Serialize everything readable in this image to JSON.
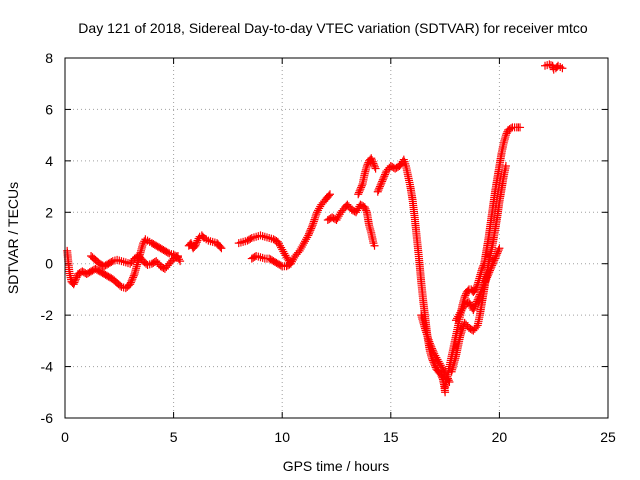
{
  "chart_data": {
    "type": "scatter",
    "title": "Day 121 of 2018, Sidereal Day-to-day VTEC variation (SDTVAR) for receiver mtco",
    "xlabel": "GPS time / hours",
    "ylabel": "SDTVAR / TECUs",
    "xlim": [
      0,
      25
    ],
    "ylim": [
      -6,
      8
    ],
    "xticks": [
      "0",
      "5",
      "10",
      "15",
      "20",
      "25"
    ],
    "yticks": [
      "-6",
      "-4",
      "-2",
      "0",
      "2",
      "4",
      "6",
      "8"
    ],
    "grid": true,
    "marker": "plus",
    "color": "#ff0000",
    "series": [
      {
        "points": [
          [
            0.1,
            0.5
          ],
          [
            0.15,
            0.1
          ],
          [
            0.2,
            -0.3
          ],
          [
            0.3,
            -0.7
          ],
          [
            0.4,
            -0.8
          ],
          [
            0.5,
            -0.6
          ],
          [
            0.6,
            -0.4
          ],
          [
            0.8,
            -0.3
          ],
          [
            1.0,
            -0.4
          ],
          [
            1.2,
            -0.3
          ],
          [
            1.4,
            -0.2
          ],
          [
            1.6,
            -0.3
          ],
          [
            1.8,
            -0.4
          ],
          [
            2.0,
            -0.5
          ],
          [
            2.2,
            -0.6
          ],
          [
            2.4,
            -0.75
          ],
          [
            2.6,
            -0.9
          ],
          [
            2.8,
            -0.95
          ],
          [
            3.0,
            -0.8
          ],
          [
            3.1,
            -0.6
          ],
          [
            3.2,
            -0.4
          ],
          [
            3.3,
            -0.1
          ],
          [
            3.4,
            0.2
          ],
          [
            3.5,
            0.5
          ],
          [
            3.6,
            0.8
          ],
          [
            3.7,
            0.95
          ],
          [
            3.8,
            0.9
          ],
          [
            3.9,
            0.85
          ],
          [
            4.0,
            0.8
          ],
          [
            4.2,
            0.7
          ],
          [
            4.4,
            0.6
          ],
          [
            4.6,
            0.5
          ],
          [
            4.8,
            0.4
          ],
          [
            5.0,
            0.35
          ],
          [
            5.2,
            0.25
          ],
          [
            5.3,
            0.1
          ]
        ]
      },
      {
        "points": [
          [
            1.2,
            0.3
          ],
          [
            1.4,
            0.15
          ],
          [
            1.6,
            0.0
          ],
          [
            1.8,
            -0.1
          ],
          [
            2.0,
            0.0
          ],
          [
            2.2,
            0.1
          ],
          [
            2.4,
            0.15
          ],
          [
            2.6,
            0.1
          ],
          [
            2.8,
            0.05
          ],
          [
            3.0,
            0.0
          ],
          [
            3.2,
            0.2
          ],
          [
            3.4,
            0.3
          ],
          [
            3.6,
            0.1
          ],
          [
            3.8,
            -0.05
          ],
          [
            4.0,
            0.0
          ],
          [
            4.2,
            0.1
          ],
          [
            4.4,
            -0.1
          ],
          [
            4.6,
            -0.2
          ],
          [
            4.8,
            0.0
          ],
          [
            5.0,
            0.2
          ],
          [
            5.2,
            0.3
          ]
        ]
      },
      {
        "points": [
          [
            5.7,
            0.7
          ],
          [
            5.8,
            0.8
          ],
          [
            5.9,
            0.6
          ],
          [
            6.0,
            0.7
          ],
          [
            6.1,
            0.9
          ],
          [
            6.2,
            1.05
          ],
          [
            6.3,
            1.1
          ],
          [
            6.4,
            1.0
          ],
          [
            6.5,
            0.95
          ],
          [
            6.6,
            0.9
          ],
          [
            6.8,
            0.85
          ],
          [
            7.0,
            0.8
          ],
          [
            7.1,
            0.7
          ],
          [
            7.2,
            0.6
          ]
        ]
      },
      {
        "points": [
          [
            8.0,
            0.8
          ],
          [
            8.2,
            0.85
          ],
          [
            8.4,
            0.9
          ],
          [
            8.6,
            1.0
          ],
          [
            8.8,
            1.05
          ],
          [
            9.0,
            1.1
          ],
          [
            9.2,
            1.05
          ],
          [
            9.4,
            1.0
          ],
          [
            9.6,
            0.95
          ],
          [
            9.8,
            0.85
          ],
          [
            10.0,
            0.55
          ],
          [
            10.2,
            0.25
          ],
          [
            10.35,
            0.05
          ]
        ]
      },
      {
        "points": [
          [
            8.6,
            0.2
          ],
          [
            8.8,
            0.3
          ],
          [
            9.0,
            0.25
          ],
          [
            9.2,
            0.2
          ],
          [
            9.4,
            0.2
          ],
          [
            9.6,
            0.1
          ],
          [
            9.8,
            0.0
          ],
          [
            10.0,
            -0.1
          ],
          [
            10.2,
            -0.1
          ],
          [
            10.4,
            0.0
          ],
          [
            10.6,
            0.3
          ],
          [
            10.8,
            0.5
          ],
          [
            11.0,
            0.8
          ],
          [
            11.2,
            1.1
          ],
          [
            11.4,
            1.5
          ],
          [
            11.6,
            2.0
          ],
          [
            11.8,
            2.3
          ],
          [
            12.0,
            2.5
          ],
          [
            12.1,
            2.6
          ],
          [
            12.2,
            2.7
          ]
        ]
      },
      {
        "points": [
          [
            12.1,
            1.7
          ],
          [
            12.3,
            1.8
          ],
          [
            12.5,
            1.7
          ],
          [
            12.7,
            2.0
          ],
          [
            12.9,
            2.2
          ],
          [
            13.0,
            2.3
          ],
          [
            13.2,
            2.1
          ],
          [
            13.4,
            2.0
          ],
          [
            13.6,
            2.3
          ],
          [
            13.8,
            2.2
          ],
          [
            13.9,
            2.0
          ],
          [
            14.0,
            1.5
          ],
          [
            14.1,
            1.2
          ],
          [
            14.2,
            0.8
          ],
          [
            14.25,
            0.7
          ]
        ]
      },
      {
        "points": [
          [
            13.5,
            2.7
          ],
          [
            13.6,
            2.9
          ],
          [
            13.7,
            3.1
          ],
          [
            13.8,
            3.5
          ],
          [
            13.9,
            3.8
          ],
          [
            14.0,
            4.0
          ],
          [
            14.1,
            4.1
          ],
          [
            14.2,
            3.9
          ],
          [
            14.3,
            3.7
          ]
        ]
      },
      {
        "points": [
          [
            14.4,
            2.8
          ],
          [
            14.6,
            3.2
          ],
          [
            14.8,
            3.6
          ],
          [
            15.0,
            3.8
          ],
          [
            15.2,
            3.7
          ],
          [
            15.4,
            3.8
          ],
          [
            15.5,
            3.9
          ],
          [
            15.6,
            4.05
          ],
          [
            15.7,
            3.8
          ],
          [
            15.8,
            3.4
          ],
          [
            15.9,
            3.0
          ],
          [
            16.0,
            2.5
          ],
          [
            16.1,
            1.8
          ],
          [
            16.2,
            1.0
          ],
          [
            16.3,
            0.2
          ],
          [
            16.4,
            -0.7
          ],
          [
            16.5,
            -1.5
          ],
          [
            16.6,
            -2.2
          ],
          [
            16.7,
            -2.9
          ],
          [
            16.8,
            -3.4
          ],
          [
            16.9,
            -3.7
          ],
          [
            17.0,
            -3.9
          ],
          [
            17.1,
            -4.1
          ],
          [
            17.2,
            -4.2
          ],
          [
            17.3,
            -4.3
          ],
          [
            17.4,
            -4.5
          ],
          [
            17.45,
            -4.7
          ],
          [
            17.5,
            -5.0
          ]
        ]
      },
      {
        "points": [
          [
            16.4,
            -2.0
          ],
          [
            16.6,
            -2.6
          ],
          [
            16.8,
            -3.1
          ],
          [
            17.0,
            -3.5
          ],
          [
            17.2,
            -3.8
          ],
          [
            17.4,
            -4.1
          ],
          [
            17.6,
            -4.4
          ],
          [
            17.7,
            -4.6
          ]
        ]
      },
      {
        "points": [
          [
            17.5,
            -4.8
          ],
          [
            17.6,
            -4.4
          ],
          [
            17.7,
            -4.0
          ],
          [
            17.8,
            -3.6
          ],
          [
            17.9,
            -3.2
          ],
          [
            18.0,
            -2.8
          ],
          [
            18.1,
            -2.4
          ],
          [
            18.2,
            -2.0
          ],
          [
            18.3,
            -1.6
          ],
          [
            18.4,
            -1.3
          ],
          [
            18.5,
            -1.1
          ],
          [
            18.6,
            -1.0
          ],
          [
            18.7,
            -1.0
          ],
          [
            18.8,
            -1.1
          ],
          [
            18.9,
            -1.0
          ],
          [
            19.0,
            -0.8
          ],
          [
            19.1,
            -0.5
          ],
          [
            19.2,
            -0.2
          ],
          [
            19.3,
            0.0
          ],
          [
            19.4,
            0.5
          ],
          [
            19.5,
            1.0
          ],
          [
            19.6,
            1.6
          ],
          [
            19.7,
            2.2
          ],
          [
            19.8,
            2.8
          ],
          [
            19.9,
            3.3
          ],
          [
            20.0,
            3.8
          ],
          [
            20.1,
            4.3
          ],
          [
            20.2,
            4.7
          ],
          [
            20.3,
            5.0
          ],
          [
            20.4,
            5.2
          ],
          [
            20.6,
            5.3
          ],
          [
            20.8,
            5.3
          ],
          [
            20.95,
            5.3
          ]
        ]
      },
      {
        "points": [
          [
            17.8,
            -4.2
          ],
          [
            18.0,
            -3.6
          ],
          [
            18.2,
            -2.8
          ],
          [
            18.4,
            -2.3
          ],
          [
            18.6,
            -2.5
          ],
          [
            18.8,
            -2.6
          ],
          [
            19.0,
            -2.4
          ],
          [
            19.1,
            -2.0
          ],
          [
            19.2,
            -1.5
          ],
          [
            19.3,
            -1.0
          ],
          [
            19.4,
            -0.5
          ],
          [
            19.5,
            0.0
          ],
          [
            19.6,
            0.4
          ],
          [
            19.7,
            0.8
          ],
          [
            19.8,
            1.3
          ],
          [
            19.9,
            1.8
          ],
          [
            20.0,
            2.4
          ],
          [
            20.1,
            2.9
          ],
          [
            20.2,
            3.4
          ],
          [
            20.3,
            3.8
          ]
        ]
      },
      {
        "points": [
          [
            18.0,
            -2.2
          ],
          [
            18.2,
            -1.9
          ],
          [
            18.4,
            -1.6
          ],
          [
            18.6,
            -1.5
          ],
          [
            18.8,
            -1.8
          ],
          [
            19.0,
            -1.4
          ],
          [
            19.2,
            -1.0
          ],
          [
            19.4,
            -0.6
          ],
          [
            19.6,
            -0.2
          ],
          [
            19.8,
            0.2
          ],
          [
            20.0,
            0.6
          ]
        ]
      },
      {
        "points": [
          [
            22.1,
            7.7
          ],
          [
            22.3,
            7.75
          ],
          [
            22.45,
            7.7
          ],
          [
            22.5,
            7.55
          ],
          [
            22.6,
            7.6
          ],
          [
            22.7,
            7.7
          ],
          [
            22.8,
            7.65
          ],
          [
            22.9,
            7.6
          ]
        ]
      }
    ]
  }
}
